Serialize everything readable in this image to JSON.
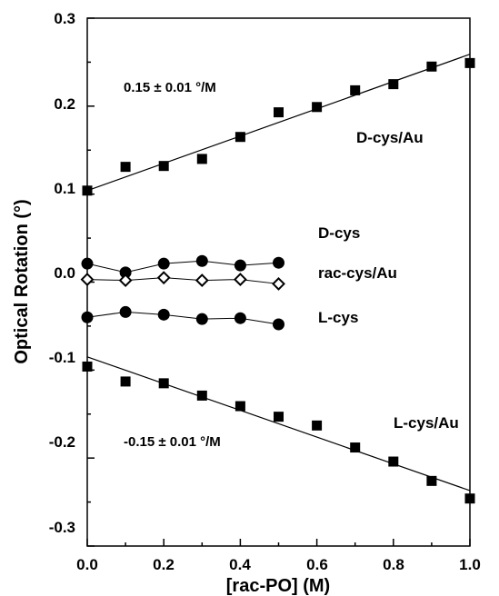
{
  "chart_data": {
    "type": "scatter",
    "xlabel": "[rac-PO] (M)",
    "ylabel": "Optical Rotation (°)",
    "xlim": [
      0.0,
      1.0
    ],
    "ylim": [
      -0.3,
      0.3
    ],
    "x_ticks": [
      "0.0",
      "0.2",
      "0.4",
      "0.6",
      "0.8",
      "1.0"
    ],
    "y_ticks": [
      "-0.3",
      "-0.2",
      "-0.1",
      "0.0",
      "0.1",
      "0.2",
      "0.3"
    ],
    "series": [
      {
        "name": "D-cys/Au",
        "marker": "filled-square",
        "connect": false,
        "x": [
          0.0,
          0.1,
          0.2,
          0.3,
          0.4,
          0.5,
          0.6,
          0.7,
          0.8,
          0.9,
          1.0
        ],
        "y": [
          0.104,
          0.131,
          0.132,
          0.14,
          0.165,
          0.193,
          0.199,
          0.218,
          0.225,
          0.245,
          0.249
        ],
        "fit": [
          0.104,
          0.259
        ]
      },
      {
        "name": "D-cys",
        "marker": "filled-circle",
        "connect": true,
        "x": [
          0.0,
          0.1,
          0.2,
          0.3,
          0.4,
          0.5
        ],
        "y": [
          0.021,
          0.011,
          0.021,
          0.024,
          0.019,
          0.022
        ]
      },
      {
        "name": "rac-cys/Au",
        "marker": "open-diamond",
        "connect": true,
        "x": [
          0.0,
          0.1,
          0.2,
          0.3,
          0.4,
          0.5
        ],
        "y": [
          0.003,
          0.002,
          0.005,
          0.002,
          0.003,
          -0.002
        ]
      },
      {
        "name": "L-cys",
        "marker": "filled-circle",
        "connect": true,
        "x": [
          0.0,
          0.1,
          0.2,
          0.3,
          0.4,
          0.5
        ],
        "y": [
          -0.04,
          -0.034,
          -0.037,
          -0.042,
          -0.041,
          -0.048
        ]
      },
      {
        "name": "L-cys/Au",
        "marker": "filled-square",
        "connect": false,
        "x": [
          0.0,
          0.1,
          0.2,
          0.3,
          0.4,
          0.5,
          0.6,
          0.7,
          0.8,
          0.9,
          1.0
        ],
        "y": [
          -0.096,
          -0.113,
          -0.115,
          -0.129,
          -0.141,
          -0.153,
          -0.163,
          -0.188,
          -0.204,
          -0.226,
          -0.246
        ],
        "fit": [
          -0.085,
          -0.237
        ]
      }
    ],
    "annotations": {
      "d_slope": "0.15 ± 0.01 °/M",
      "l_slope": "-0.15 ± 0.01 °/M",
      "d_cys_au": "D-cys/Au",
      "d_cys": "D-cys",
      "rac_cys_au": "rac-cys/Au",
      "l_cys": "L-cys",
      "l_cys_au": "L-cys/Au"
    }
  }
}
